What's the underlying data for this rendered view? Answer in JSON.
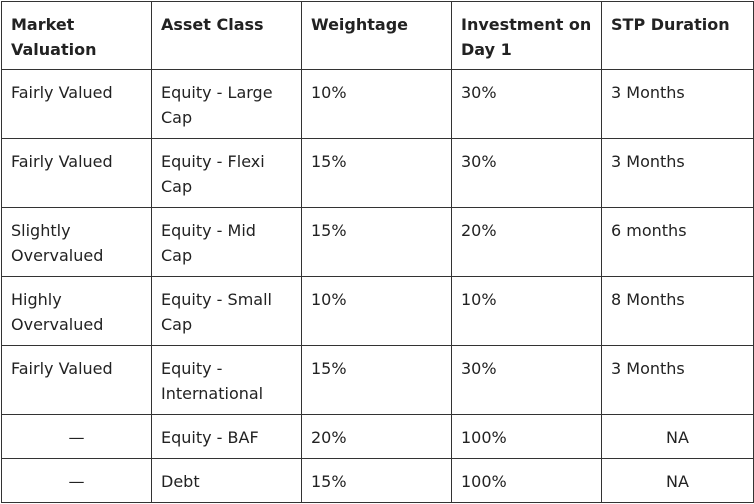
{
  "table": {
    "header": [
      "Market Valuation",
      "Asset Class",
      "Weightage",
      "Investment on Day 1",
      "STP Duration"
    ],
    "rows": [
      [
        "Fairly Valued",
        "Equity - Large Cap",
        "10%",
        "30%",
        "3 Months"
      ],
      [
        "Fairly Valued",
        "Equity - Flexi Cap",
        "15%",
        "30%",
        "3 Months"
      ],
      [
        "Slightly Overvalued",
        "Equity - Mid Cap",
        "15%",
        "20%",
        "6 months"
      ],
      [
        "Highly Overvalued",
        "Equity - Small Cap",
        "10%",
        "10%",
        "8 Months"
      ],
      [
        "Fairly Valued",
        "Equity - International",
        "15%",
        "30%",
        "3 Months"
      ],
      [
        "—",
        "Equity - BAF",
        "20%",
        "100%",
        "NA"
      ],
      [
        "—",
        "Debt",
        "15%",
        "100%",
        "NA"
      ]
    ]
  }
}
